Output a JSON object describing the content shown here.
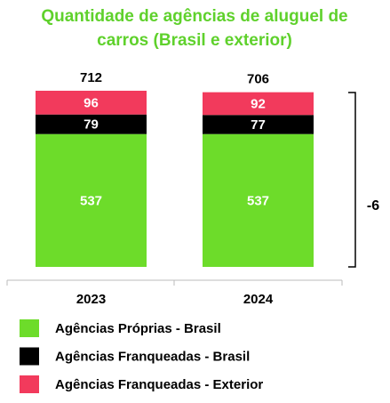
{
  "chart_data": {
    "type": "stacked-bar",
    "title": [
      "Quantidade de agências de aluguel de",
      "carros (Brasil e exterior)"
    ],
    "categories": [
      "2023",
      "2024"
    ],
    "series": [
      {
        "name": "Agências Próprias - Brasil",
        "color": "#6ddc2a",
        "values": [
          537,
          537
        ]
      },
      {
        "name": "Agências Franqueadas - Brasil",
        "color": "#000000",
        "values": [
          79,
          77
        ]
      },
      {
        "name": "Agências Franqueadas - Exterior",
        "color": "#f23a5c",
        "values": [
          96,
          92
        ]
      }
    ],
    "totals": [
      712,
      706
    ],
    "annotation": "-6"
  }
}
